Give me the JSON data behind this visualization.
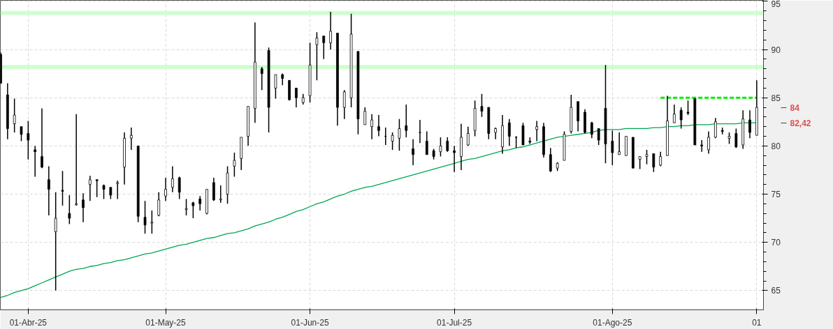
{
  "chart_data": {
    "type": "candlestick",
    "categories": [
      null,
      null,
      null,
      null,
      "01-Abr-25",
      null,
      null,
      null,
      null,
      null,
      null,
      null,
      null,
      null,
      null,
      null,
      null,
      null,
      null,
      null,
      null,
      null,
      null,
      null,
      "01-May-25",
      null,
      null,
      null,
      null,
      null,
      null,
      null,
      null,
      null,
      null,
      null,
      null,
      null,
      null,
      null,
      null,
      null,
      null,
      null,
      null,
      "01-Jun-25",
      null,
      null,
      null,
      null,
      null,
      null,
      null,
      null,
      null,
      null,
      null,
      null,
      null,
      null,
      null,
      null,
      null,
      null,
      null,
      null,
      "01-Jul-25",
      null,
      null,
      null,
      null,
      null,
      null,
      null,
      null,
      null,
      null,
      null,
      null,
      null,
      null,
      null,
      null,
      null,
      null,
      null,
      null,
      null,
      null,
      "01-Ago-25",
      null,
      null,
      null,
      null,
      null,
      null,
      null,
      null,
      null,
      null,
      null,
      null,
      null,
      null,
      null,
      null,
      null,
      null,
      null,
      null,
      "01"
    ],
    "ohlc": [
      [
        89.5,
        89.7,
        86.5,
        86.5
      ],
      [
        85.3,
        86.5,
        80.7,
        81.8
      ],
      [
        82.3,
        84.9,
        81.4,
        83.2
      ],
      [
        82.0,
        82.0,
        80.5,
        81.2
      ],
      [
        81.3,
        82.6,
        78.6,
        80.6
      ],
      [
        79.6,
        80.0,
        76.8,
        79.4
      ],
      [
        78.9,
        83.9,
        77.7,
        77.8
      ],
      [
        76.5,
        77.9,
        72.8,
        75.5
      ],
      [
        71.1,
        75.2,
        65.0,
        72.5
      ],
      [
        75.4,
        77.4,
        73.8,
        75.3
      ],
      [
        73.0,
        74.9,
        71.9,
        72.5
      ],
      [
        73.9,
        83.3,
        73.8,
        74.0
      ],
      [
        74.4,
        75.1,
        72.1,
        73.6
      ],
      [
        76.0,
        76.9,
        74.3,
        76.5
      ],
      [
        76.5,
        76.5,
        74.7,
        76.4
      ],
      [
        75.9,
        76.0,
        74.5,
        75.5
      ],
      [
        75.7,
        75.7,
        74.5,
        74.9
      ],
      [
        76.1,
        76.4,
        74.5,
        76.2
      ],
      [
        77.8,
        81.4,
        76.0,
        80.8
      ],
      [
        80.8,
        81.9,
        79.6,
        81.1
      ],
      [
        80.0,
        80.0,
        72.1,
        72.7
      ],
      [
        72.6,
        74.3,
        70.9,
        71.8
      ],
      [
        72.0,
        73.3,
        70.9,
        72.1
      ],
      [
        72.8,
        75.2,
        72.7,
        74.4
      ],
      [
        74.8,
        76.7,
        74.3,
        75.5
      ],
      [
        75.7,
        77.9,
        75.2,
        76.6
      ],
      [
        76.7,
        76.8,
        74.5,
        75.2
      ],
      [
        73.4,
        74.5,
        72.8,
        73.5
      ],
      [
        74.1,
        74.2,
        72.5,
        73.8
      ],
      [
        74.5,
        74.8,
        73.3,
        74.0
      ],
      [
        73.0,
        75.5,
        72.9,
        75.5
      ],
      [
        76.2,
        76.7,
        74.3,
        74.4
      ],
      [
        74.4,
        75.9,
        74.1,
        74.5
      ],
      [
        75.0,
        77.9,
        74.0,
        77.2
      ],
      [
        77.9,
        79.3,
        76.8,
        78.5
      ],
      [
        78.7,
        80.9,
        77.5,
        80.9
      ],
      [
        81.0,
        84.1,
        80.0,
        84.1
      ],
      [
        83.9,
        92.8,
        82.4,
        88.7
      ],
      [
        88.0,
        88.2,
        85.8,
        87.5
      ],
      [
        89.9,
        90.2,
        81.4,
        84.0
      ],
      [
        86.0,
        87.4,
        84.9,
        87.4
      ],
      [
        87.4,
        87.5,
        86.3,
        87.0
      ],
      [
        86.8,
        86.8,
        84.7,
        84.8
      ],
      [
        86.0,
        86.0,
        84.0,
        85.0
      ],
      [
        84.5,
        85.4,
        84.3,
        85.0
      ],
      [
        85.2,
        90.7,
        84.5,
        88.4
      ],
      [
        90.5,
        91.8,
        86.8,
        91.2
      ],
      [
        91.4,
        91.4,
        89.0,
        90.7
      ],
      [
        90.7,
        93.9,
        90.0,
        91.9
      ],
      [
        91.7,
        91.7,
        82.1,
        84.0
      ],
      [
        84.0,
        85.8,
        82.8,
        85.6
      ],
      [
        85.0,
        93.7,
        84.0,
        91.6
      ],
      [
        89.8,
        89.8,
        81.2,
        82.8
      ],
      [
        82.2,
        84.0,
        82.2,
        83.6
      ],
      [
        82.0,
        83.3,
        80.7,
        82.7
      ],
      [
        82.0,
        83.2,
        81.0,
        81.6
      ],
      [
        81.0,
        81.9,
        80.1,
        81.0
      ],
      [
        80.5,
        81.4,
        79.6,
        81.1
      ],
      [
        80.8,
        82.8,
        79.5,
        81.8
      ],
      [
        82.1,
        84.3,
        80.9,
        81.6
      ],
      [
        79.7,
        80.7,
        78.0,
        79.1
      ],
      [
        81.4,
        82.7,
        80.3,
        81.4
      ],
      [
        80.5,
        81.5,
        79.1,
        79.1
      ],
      [
        79.5,
        79.7,
        78.6,
        78.9
      ],
      [
        79.4,
        80.9,
        78.9,
        80.0
      ],
      [
        80.5,
        80.9,
        79.4,
        79.5
      ],
      [
        79.5,
        80.0,
        77.3,
        79.3
      ],
      [
        78.9,
        82.3,
        77.5,
        80.9
      ],
      [
        80.1,
        82.0,
        80.0,
        81.3
      ],
      [
        81.6,
        84.7,
        81.0,
        83.9
      ],
      [
        84.1,
        85.4,
        83.0,
        83.6
      ],
      [
        84.0,
        84.0,
        80.7,
        81.3
      ],
      [
        81.4,
        81.9,
        80.7,
        81.8
      ],
      [
        79.9,
        83.2,
        79.2,
        82.1
      ],
      [
        82.4,
        82.8,
        80.0,
        81.0
      ],
      [
        80.9,
        81.0,
        79.8,
        80.9
      ],
      [
        82.1,
        82.4,
        80.1,
        80.1
      ],
      [
        80.5,
        80.9,
        80.2,
        80.4
      ],
      [
        81.7,
        82.6,
        80.5,
        82.0
      ],
      [
        82.0,
        82.4,
        78.8,
        79.1
      ],
      [
        79.1,
        79.8,
        77.3,
        77.4
      ],
      [
        77.7,
        78.3,
        77.4,
        78.2
      ],
      [
        78.5,
        81.5,
        78.5,
        81.2
      ],
      [
        81.5,
        85.3,
        81.3,
        84.0
      ],
      [
        84.6,
        84.6,
        81.5,
        82.6
      ],
      [
        83.5,
        83.8,
        81.3,
        81.4
      ],
      [
        82.4,
        82.5,
        80.8,
        81.2
      ],
      [
        81.8,
        81.8,
        80.1,
        80.6
      ],
      [
        83.9,
        88.4,
        78.2,
        80.2
      ],
      [
        80.5,
        81.6,
        78.0,
        79.3
      ],
      [
        79.1,
        81.4,
        79.1,
        79.4
      ],
      [
        79.0,
        81.0,
        79.0,
        81.0
      ],
      [
        80.9,
        80.9,
        77.7,
        77.7
      ],
      [
        78.6,
        78.9,
        77.6,
        78.9
      ],
      [
        78.9,
        79.6,
        78.1,
        79.1
      ],
      [
        79.2,
        79.2,
        77.3,
        77.8
      ],
      [
        78.0,
        79.4,
        77.9,
        78.9
      ],
      [
        79.0,
        85.2,
        79.0,
        82.6
      ],
      [
        82.4,
        84.3,
        82.4,
        83.3
      ],
      [
        83.7,
        84.0,
        81.8,
        82.7
      ],
      [
        83.5,
        84.7,
        83.2,
        83.4
      ],
      [
        84.9,
        84.9,
        80.1,
        80.1
      ],
      [
        80.1,
        80.6,
        79.4,
        80.0
      ],
      [
        79.6,
        81.5,
        79.2,
        80.9
      ],
      [
        80.9,
        82.9,
        80.8,
        82.5
      ],
      [
        81.6,
        81.9,
        81.2,
        81.5
      ],
      [
        80.8,
        81.4,
        80.2,
        81.0
      ],
      [
        81.3,
        81.8,
        79.8,
        79.9
      ],
      [
        80.1,
        83.7,
        79.7,
        82.8
      ],
      [
        82.7,
        83.7,
        80.8,
        81.4
      ],
      [
        81.1,
        86.8,
        81.1,
        84.0
      ]
    ],
    "series": [
      {
        "type": "line",
        "color": "#00a651",
        "line_style": "solid",
        "values": [
          64.3,
          64.5,
          64.8,
          65.0,
          65.2,
          65.5,
          65.8,
          66.1,
          66.4,
          66.7,
          67.0,
          67.2,
          67.3,
          67.5,
          67.6,
          67.8,
          67.9,
          68.1,
          68.2,
          68.4,
          68.6,
          68.8,
          68.9,
          69.1,
          69.3,
          69.5,
          69.7,
          69.8,
          70.0,
          70.2,
          70.4,
          70.5,
          70.7,
          70.9,
          71.0,
          71.2,
          71.4,
          71.7,
          71.9,
          72.1,
          72.4,
          72.6,
          72.9,
          73.2,
          73.4,
          73.7,
          74.0,
          74.2,
          74.5,
          74.8,
          75.0,
          75.3,
          75.5,
          75.7,
          75.8,
          76.0,
          76.2,
          76.4,
          76.6,
          76.8,
          77.0,
          77.2,
          77.4,
          77.6,
          77.8,
          78.0,
          78.2,
          78.4,
          78.6,
          78.7,
          78.9,
          79.1,
          79.3,
          79.5,
          79.6,
          79.8,
          79.9,
          80.1,
          80.3,
          80.5,
          80.7,
          80.9,
          81.0,
          81.1,
          81.2,
          81.3,
          81.4,
          81.6,
          81.7,
          81.7,
          81.7,
          81.8,
          81.8,
          81.8,
          81.8,
          81.9,
          81.9,
          82.0,
          82.0,
          82.1,
          82.1,
          82.2,
          82.2,
          82.2,
          82.3,
          82.3,
          82.3,
          82.3,
          82.4,
          82.4,
          82.4
        ]
      },
      {
        "type": "line",
        "color": "#00ee00",
        "line_style": "dashed",
        "values": [
          null,
          null,
          null,
          null,
          null,
          null,
          null,
          null,
          null,
          null,
          null,
          null,
          null,
          null,
          null,
          null,
          null,
          null,
          null,
          null,
          null,
          null,
          null,
          null,
          null,
          null,
          null,
          null,
          null,
          null,
          null,
          null,
          null,
          null,
          null,
          null,
          null,
          null,
          null,
          null,
          null,
          null,
          null,
          null,
          null,
          null,
          null,
          null,
          null,
          null,
          null,
          null,
          null,
          null,
          null,
          null,
          null,
          null,
          null,
          null,
          null,
          null,
          null,
          null,
          null,
          null,
          null,
          null,
          null,
          null,
          null,
          null,
          null,
          null,
          null,
          null,
          null,
          null,
          null,
          null,
          null,
          null,
          null,
          null,
          null,
          null,
          null,
          null,
          null,
          null,
          null,
          null,
          null,
          null,
          null,
          null,
          85.0,
          85.0,
          85.0,
          85.0,
          85.0,
          85.0,
          85.0,
          85.0,
          85.0,
          85.0,
          85.0,
          85.0,
          85.0,
          85.0,
          85.0
        ]
      }
    ],
    "bands": [
      {
        "axis": "y",
        "from": 93.6,
        "to": 94.0,
        "color": "#ccffcc"
      },
      {
        "axis": "y",
        "from": 88.0,
        "to": 88.4,
        "color": "#ccffcc"
      }
    ],
    "annotations": [
      "84",
      "82,42"
    ],
    "ylim": [
      63.0,
      95.1
    ],
    "yticks": [
      65,
      70,
      75,
      80,
      85,
      90,
      95
    ],
    "grid": true
  }
}
